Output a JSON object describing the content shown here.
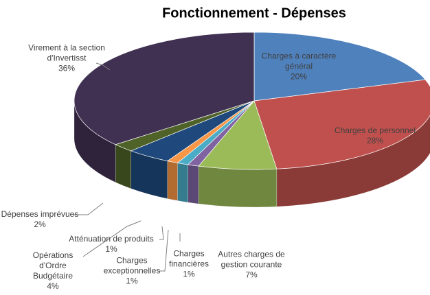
{
  "chart_data": {
    "type": "pie",
    "title": "Fonctionnement - Dépenses",
    "categories": [
      "Charges à caractère général",
      "Charges de personnel",
      "Autres charges de gestion courante",
      "Charges financières",
      "Charges exceptionnelles",
      "Atténuation de produits",
      "Opérations d'Ordre Budgétaire",
      "Dépenses imprévues",
      "Virement à la section d'Invertisst"
    ],
    "values": [
      20,
      28,
      7,
      1,
      1,
      1,
      4,
      2,
      36
    ],
    "value_labels": [
      "20%",
      "28%",
      "7%",
      "1%",
      "1%",
      "1%",
      "4%",
      "2%",
      "36%"
    ],
    "colors": [
      "#4f81bd",
      "#c0504d",
      "#9bbb59",
      "#8064a2",
      "#4bacc6",
      "#f79646",
      "#1f497d",
      "#4f6228",
      "#403152"
    ]
  }
}
